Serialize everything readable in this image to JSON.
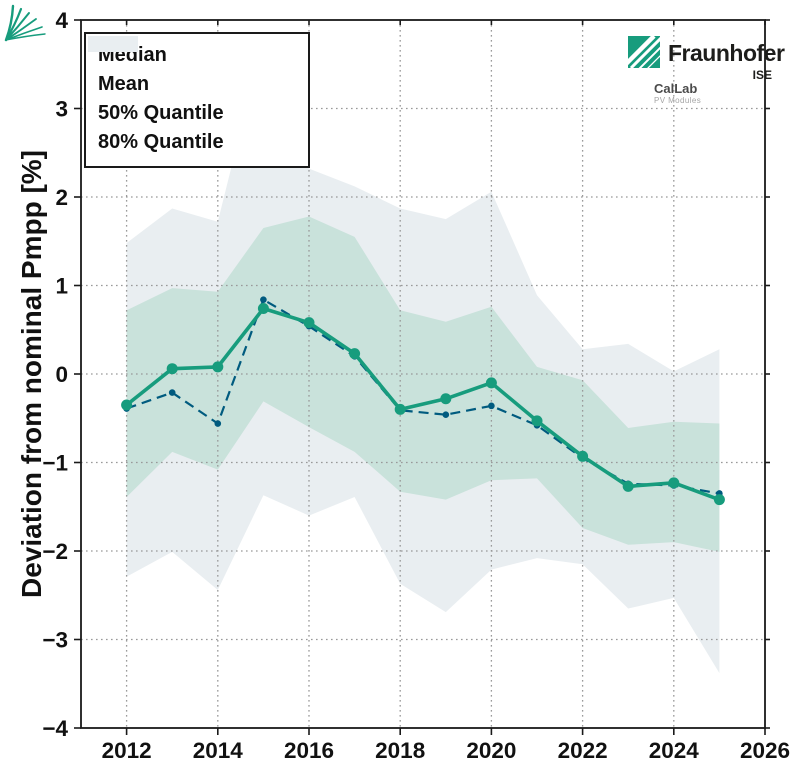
{
  "colors": {
    "median": "#179c7d",
    "mean": "#005b7f",
    "band50": "#c9e2db",
    "band80": "#e9eef1",
    "grid": "#999999",
    "frame": "#1a1a1a",
    "logo_green": "#179c7d"
  },
  "y_axis": {
    "label": "Deviation from nominal Pmpp [%]",
    "ticks": [
      4,
      3,
      2,
      1,
      0,
      -1,
      -2,
      -3,
      -4
    ],
    "tick_labels": [
      "4",
      "3",
      "2",
      "1",
      "0",
      "−1",
      "−2",
      "−3",
      "−4"
    ]
  },
  "x_axis": {
    "ticks": [
      2012,
      2014,
      2016,
      2018,
      2020,
      2022,
      2024,
      2026
    ],
    "tick_labels": [
      "2012",
      "2014",
      "2016",
      "2018",
      "2020",
      "2022",
      "2024",
      "2026"
    ]
  },
  "grid": {
    "y_values": [
      3,
      2,
      1,
      0,
      -1,
      -2,
      -3
    ],
    "x_values": [
      2012,
      2014,
      2016,
      2018,
      2020,
      2022,
      2024
    ]
  },
  "legend": {
    "items": [
      {
        "label": "Median",
        "type": "line-solid"
      },
      {
        "label": "Mean",
        "type": "line-dashed"
      },
      {
        "label": "50% Quantile",
        "type": "patch-band50"
      },
      {
        "label": "80% Quantile",
        "type": "patch-band80"
      }
    ]
  },
  "logos": {
    "fraunhofer": {
      "name": "Fraunhofer",
      "sub": "ISE"
    },
    "callab": {
      "name": "CalLab",
      "sub": "PV Modules"
    }
  },
  "chart_data": {
    "type": "line",
    "title": "",
    "xlabel": "",
    "ylabel": "Deviation from nominal Pmpp [%]",
    "xlim": [
      2011,
      2026
    ],
    "ylim": [
      -4,
      4
    ],
    "grid": "dotted, horizontal every 1 %, vertical every 2 years",
    "legend_position": "upper left",
    "x": [
      2012,
      2013,
      2014,
      2015,
      2016,
      2017,
      2018,
      2019,
      2020,
      2021,
      2022,
      2023,
      2024,
      2025
    ],
    "series": [
      {
        "name": "Median",
        "values": [
          -0.35,
          0.06,
          0.08,
          0.74,
          0.58,
          0.23,
          -0.4,
          -0.28,
          -0.1,
          -0.53,
          -0.93,
          -1.27,
          -1.23,
          -1.42
        ]
      },
      {
        "name": "Mean",
        "values": [
          -0.39,
          -0.21,
          -0.56,
          0.84,
          0.54,
          0.2,
          -0.41,
          -0.46,
          -0.36,
          -0.58,
          -0.95,
          -1.24,
          -1.26,
          -1.35
        ]
      }
    ],
    "bands": [
      {
        "name": "50% Quantile",
        "upper": [
          0.72,
          0.97,
          0.93,
          1.65,
          1.78,
          1.55,
          0.72,
          0.59,
          0.76,
          0.08,
          -0.07,
          -0.61,
          -0.54,
          -0.56
        ],
        "lower": [
          -1.39,
          -0.88,
          -1.08,
          -0.31,
          -0.6,
          -0.88,
          -1.33,
          -1.42,
          -1.2,
          -1.18,
          -1.74,
          -1.93,
          -1.9,
          -2.01
        ]
      },
      {
        "name": "80% Quantile",
        "upper": [
          1.48,
          1.87,
          1.72,
          3.79,
          2.32,
          2.12,
          1.87,
          1.75,
          2.06,
          0.89,
          0.28,
          0.34,
          0.03,
          0.28
        ],
        "lower": [
          -2.29,
          -2.01,
          -2.44,
          -1.37,
          -1.6,
          -1.39,
          -2.37,
          -2.69,
          -2.21,
          -2.08,
          -2.15,
          -2.65,
          -2.53,
          -3.38
        ]
      }
    ]
  }
}
